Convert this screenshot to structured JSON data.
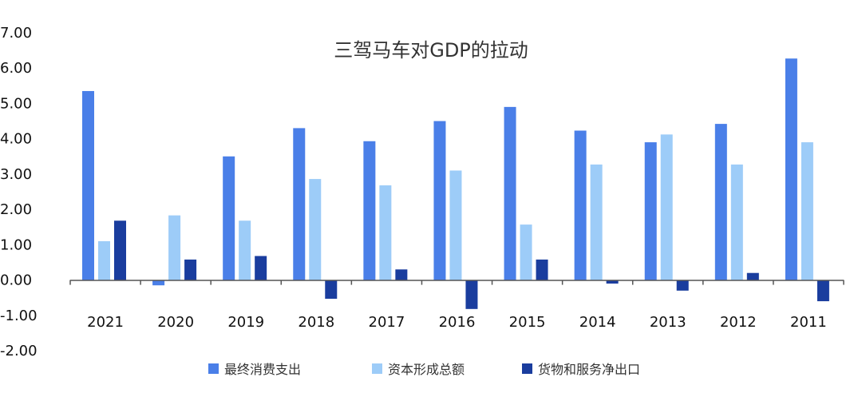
{
  "chart_data": {
    "type": "bar",
    "title": "三驾马车对GDP的拉动",
    "xlabel": "",
    "ylabel": "",
    "categories": [
      "2021",
      "2020",
      "2019",
      "2018",
      "2017",
      "2016",
      "2015",
      "2014",
      "2013",
      "2012",
      "2011"
    ],
    "series": [
      {
        "name": "最终消费支出",
        "color": "#4A7FE8",
        "values": [
          5.35,
          -0.15,
          3.5,
          4.3,
          3.93,
          4.5,
          4.9,
          4.23,
          3.9,
          4.42,
          6.27
        ]
      },
      {
        "name": "资本形成总额",
        "color": "#9DCCF8",
        "values": [
          1.1,
          1.83,
          1.68,
          2.86,
          2.68,
          3.1,
          1.57,
          3.27,
          4.12,
          3.27,
          3.9
        ]
      },
      {
        "name": "货物和服务净出口",
        "color": "#1A3D9E",
        "values": [
          1.68,
          0.58,
          0.68,
          -0.53,
          0.3,
          -0.82,
          0.58,
          -0.1,
          -0.3,
          0.2,
          -0.6
        ]
      }
    ],
    "ylim": [
      -2,
      7
    ],
    "yticks": [
      7,
      6,
      5,
      4,
      3,
      2,
      1,
      0,
      -1,
      -2
    ],
    "ytick_labels": [
      "7.00",
      "6.00",
      "5.00",
      "4.00",
      "3.00",
      "2.00",
      "1.00",
      "0.00",
      "-1.00",
      "-2.00"
    ],
    "grid": false,
    "legend_position": "bottom"
  }
}
